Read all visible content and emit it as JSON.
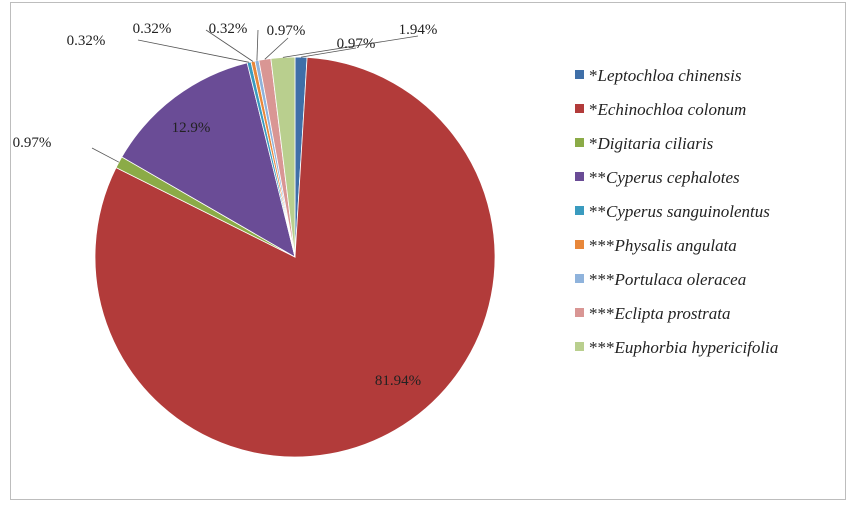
{
  "chart_data": {
    "type": "pie",
    "title": "",
    "start_angle_deg": 0,
    "direction": "clockwise",
    "legend_position": "right",
    "series": [
      {
        "name": "*Leptochloa chinensis",
        "prefix": "*",
        "species": "Leptochloa chinensis",
        "value": 0.97,
        "label": "0.97%",
        "color": "#3f6fa8"
      },
      {
        "name": "*Echinochloa colonum",
        "prefix": "*",
        "species": "Echinochloa colonum",
        "value": 81.94,
        "label": "81.94%",
        "color": "#b23b3a"
      },
      {
        "name": "*Digitaria ciliaris",
        "prefix": "*",
        "species": "Digitaria ciliaris",
        "value": 0.97,
        "label": "0.97%",
        "color": "#8bab47"
      },
      {
        "name": "**Cyperus cephalotes",
        "prefix": "**",
        "species": "Cyperus cephalotes",
        "value": 12.9,
        "label": "12.9%",
        "color": "#6a4c96"
      },
      {
        "name": "**Cyperus sanguinolentus",
        "prefix": "**",
        "species": "Cyperus sanguinolentus",
        "value": 0.32,
        "label": "0.32%",
        "color": "#3a9bbf"
      },
      {
        "name": "***Physalis angulata",
        "prefix": "***",
        "species": "Physalis angulata",
        "value": 0.32,
        "label": "0.32%",
        "color": "#e8873a"
      },
      {
        "name": "***Portulaca oleracea",
        "prefix": "***",
        "species": "Portulaca oleracea",
        "value": 0.32,
        "label": "0.32%",
        "color": "#8fb3dc"
      },
      {
        "name": "***Eclipta prostrata",
        "prefix": "***",
        "species": "Eclipta prostrata",
        "value": 0.97,
        "label": "0.97%",
        "color": "#d99694"
      },
      {
        "name": "***Euphorbia hypericifolia",
        "prefix": "***",
        "species": "Euphorbia hypericifolia",
        "value": 1.94,
        "label": "1.94%",
        "color": "#b9cf8e"
      }
    ]
  }
}
